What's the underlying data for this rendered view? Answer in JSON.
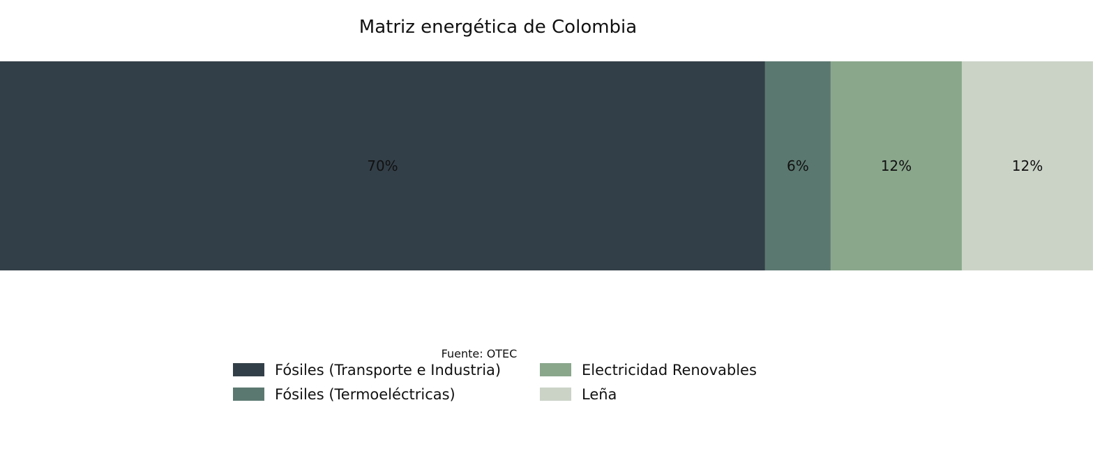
{
  "chart_data": {
    "type": "bar",
    "orientation": "horizontal-stacked-100",
    "title": "Matriz energética de Colombia",
    "source": "Fuente: OTEC",
    "xlim": [
      0,
      100
    ],
    "grid": false,
    "legend_placement": "bottom-center",
    "series": [
      {
        "name": "Fósiles (Transporte e Industria)",
        "value": 70,
        "label": "70%",
        "color": "#333f48"
      },
      {
        "name": "Fósiles (Termoeléctricas)",
        "value": 6,
        "label": "6%",
        "color": "#5b7870"
      },
      {
        "name": "Electricidad Renovables",
        "value": 12,
        "label": "12%",
        "color": "#8aa78c"
      },
      {
        "name": "Leña",
        "value": 12,
        "label": "12%",
        "color": "#cbd3c7"
      }
    ]
  }
}
